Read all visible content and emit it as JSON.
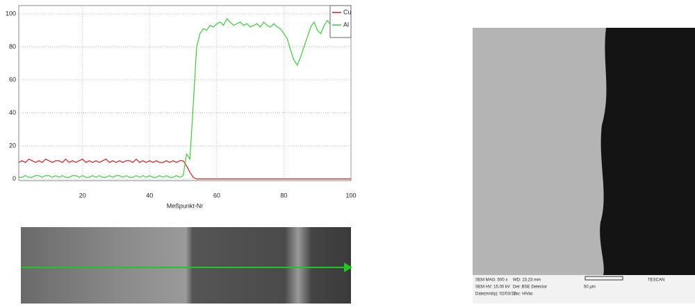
{
  "chart_data": {
    "type": "line",
    "x_label": "Meßpunkt-Nr",
    "x": [
      1,
      2,
      3,
      4,
      5,
      6,
      7,
      8,
      9,
      10,
      11,
      12,
      13,
      14,
      15,
      16,
      17,
      18,
      19,
      20,
      21,
      22,
      23,
      24,
      25,
      26,
      27,
      28,
      29,
      30,
      31,
      32,
      33,
      34,
      35,
      36,
      37,
      38,
      39,
      40,
      41,
      42,
      43,
      44,
      45,
      46,
      47,
      48,
      49,
      50,
      51,
      52,
      53,
      54,
      55,
      56,
      57,
      58,
      59,
      60,
      61,
      62,
      63,
      64,
      65,
      66,
      67,
      68,
      69,
      70,
      71,
      72,
      73,
      74,
      75,
      76,
      77,
      78,
      79,
      80,
      81,
      82,
      83,
      84,
      85,
      86,
      87,
      88,
      89,
      90,
      91,
      92,
      93,
      94,
      95,
      96,
      97,
      98,
      99,
      100
    ],
    "series": [
      {
        "name": "Cu",
        "color": "#d42020",
        "values": [
          10,
          11,
          10,
          12,
          11,
          10,
          11,
          10,
          12,
          11,
          10,
          11,
          11,
          10,
          12,
          10,
          11,
          10,
          11,
          12,
          10,
          11,
          10,
          11,
          10,
          11,
          12,
          10,
          11,
          10,
          11,
          10,
          11,
          11,
          10,
          12,
          10,
          11,
          10,
          11,
          10,
          11,
          10,
          10,
          11,
          10,
          11,
          10,
          11,
          11,
          8,
          4,
          1,
          0,
          0,
          0,
          0,
          0,
          0,
          0,
          0,
          0,
          0,
          0,
          0,
          0,
          0,
          0,
          0,
          0,
          0,
          0,
          0,
          0,
          0,
          0,
          0,
          0,
          0,
          0,
          0,
          0,
          0,
          0,
          0,
          0,
          0,
          0,
          0,
          0,
          0,
          0,
          0,
          0,
          0,
          0,
          0,
          0,
          0,
          0
        ]
      },
      {
        "name": "Al",
        "color": "#3ec83e",
        "values": [
          1,
          1,
          2,
          1,
          1,
          2,
          2,
          1,
          2,
          2,
          1,
          2,
          1,
          2,
          1,
          1,
          2,
          2,
          1,
          2,
          1,
          1,
          2,
          1,
          2,
          1,
          1,
          2,
          1,
          2,
          2,
          1,
          2,
          1,
          1,
          2,
          1,
          2,
          1,
          2,
          1,
          1,
          2,
          1,
          2,
          1,
          1,
          2,
          1,
          2,
          15,
          12,
          45,
          80,
          88,
          91,
          90,
          93,
          92,
          94,
          95,
          93,
          97,
          95,
          93,
          94,
          95,
          93,
          94,
          92,
          93,
          94,
          92,
          95,
          93,
          92,
          94,
          92,
          91,
          88,
          85,
          78,
          72,
          69,
          74,
          80,
          86,
          92,
          95,
          90,
          88,
          93,
          96,
          93,
          90,
          94,
          92,
          95,
          93,
          94
        ]
      }
    ],
    "xlim": [
      1,
      100
    ],
    "xticks": [
      20,
      40,
      60,
      80,
      100
    ],
    "ylim": [
      -1,
      105
    ],
    "yticks": [
      0,
      20,
      40,
      60,
      80,
      100
    ],
    "grid": true,
    "legend": "upper right"
  },
  "sem_info": [
    "SEM MAG: 500 x",
    "SEM HV: 15.00 kV",
    "Date(m/d/y): 02/03/12",
    "WD: 23.23 mm",
    "Det: BSE Detector",
    "Vac: HiVac",
    "50 µm",
    "TESCAN"
  ]
}
